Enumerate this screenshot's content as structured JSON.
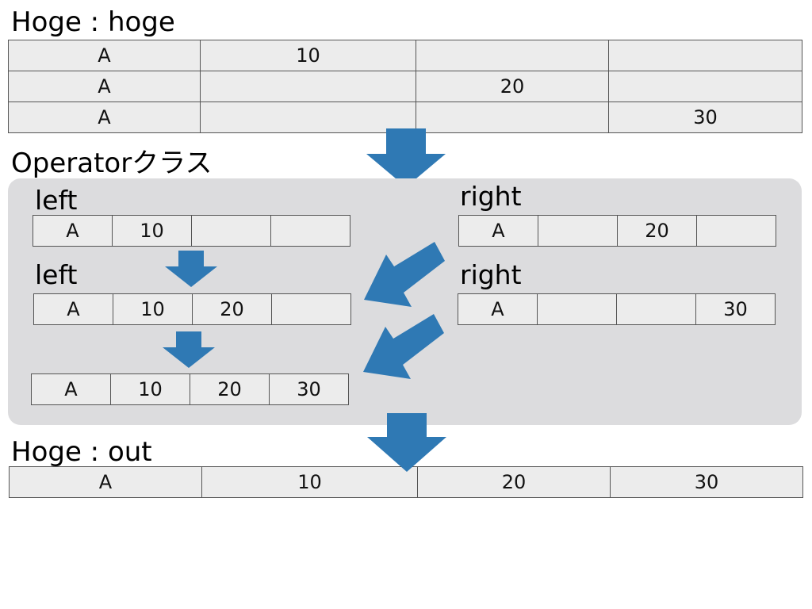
{
  "hoge_section": {
    "title": "Hoge : hoge",
    "rows": [
      [
        "A",
        "10",
        "",
        ""
      ],
      [
        "A",
        "",
        "20",
        ""
      ],
      [
        "A",
        "",
        "",
        "30"
      ]
    ]
  },
  "operator_section": {
    "title": "Operatorクラス",
    "left_label_1": "left",
    "left_row_1": [
      "A",
      "10",
      "",
      ""
    ],
    "left_label_2": "left",
    "left_row_2": [
      "A",
      "10",
      "20",
      ""
    ],
    "left_row_3": [
      "A",
      "10",
      "20",
      "30"
    ],
    "right_label_1": "right",
    "right_row_1": [
      "A",
      "",
      "20",
      ""
    ],
    "right_label_2": "right",
    "right_row_2": [
      "A",
      "",
      "",
      "30"
    ]
  },
  "out_section": {
    "title": "Hoge : out",
    "row": [
      "A",
      "10",
      "20",
      "30"
    ]
  },
  "colors": {
    "arrow": "#2f79b4",
    "panel": "#dcdcde",
    "cell": "#ececec"
  }
}
